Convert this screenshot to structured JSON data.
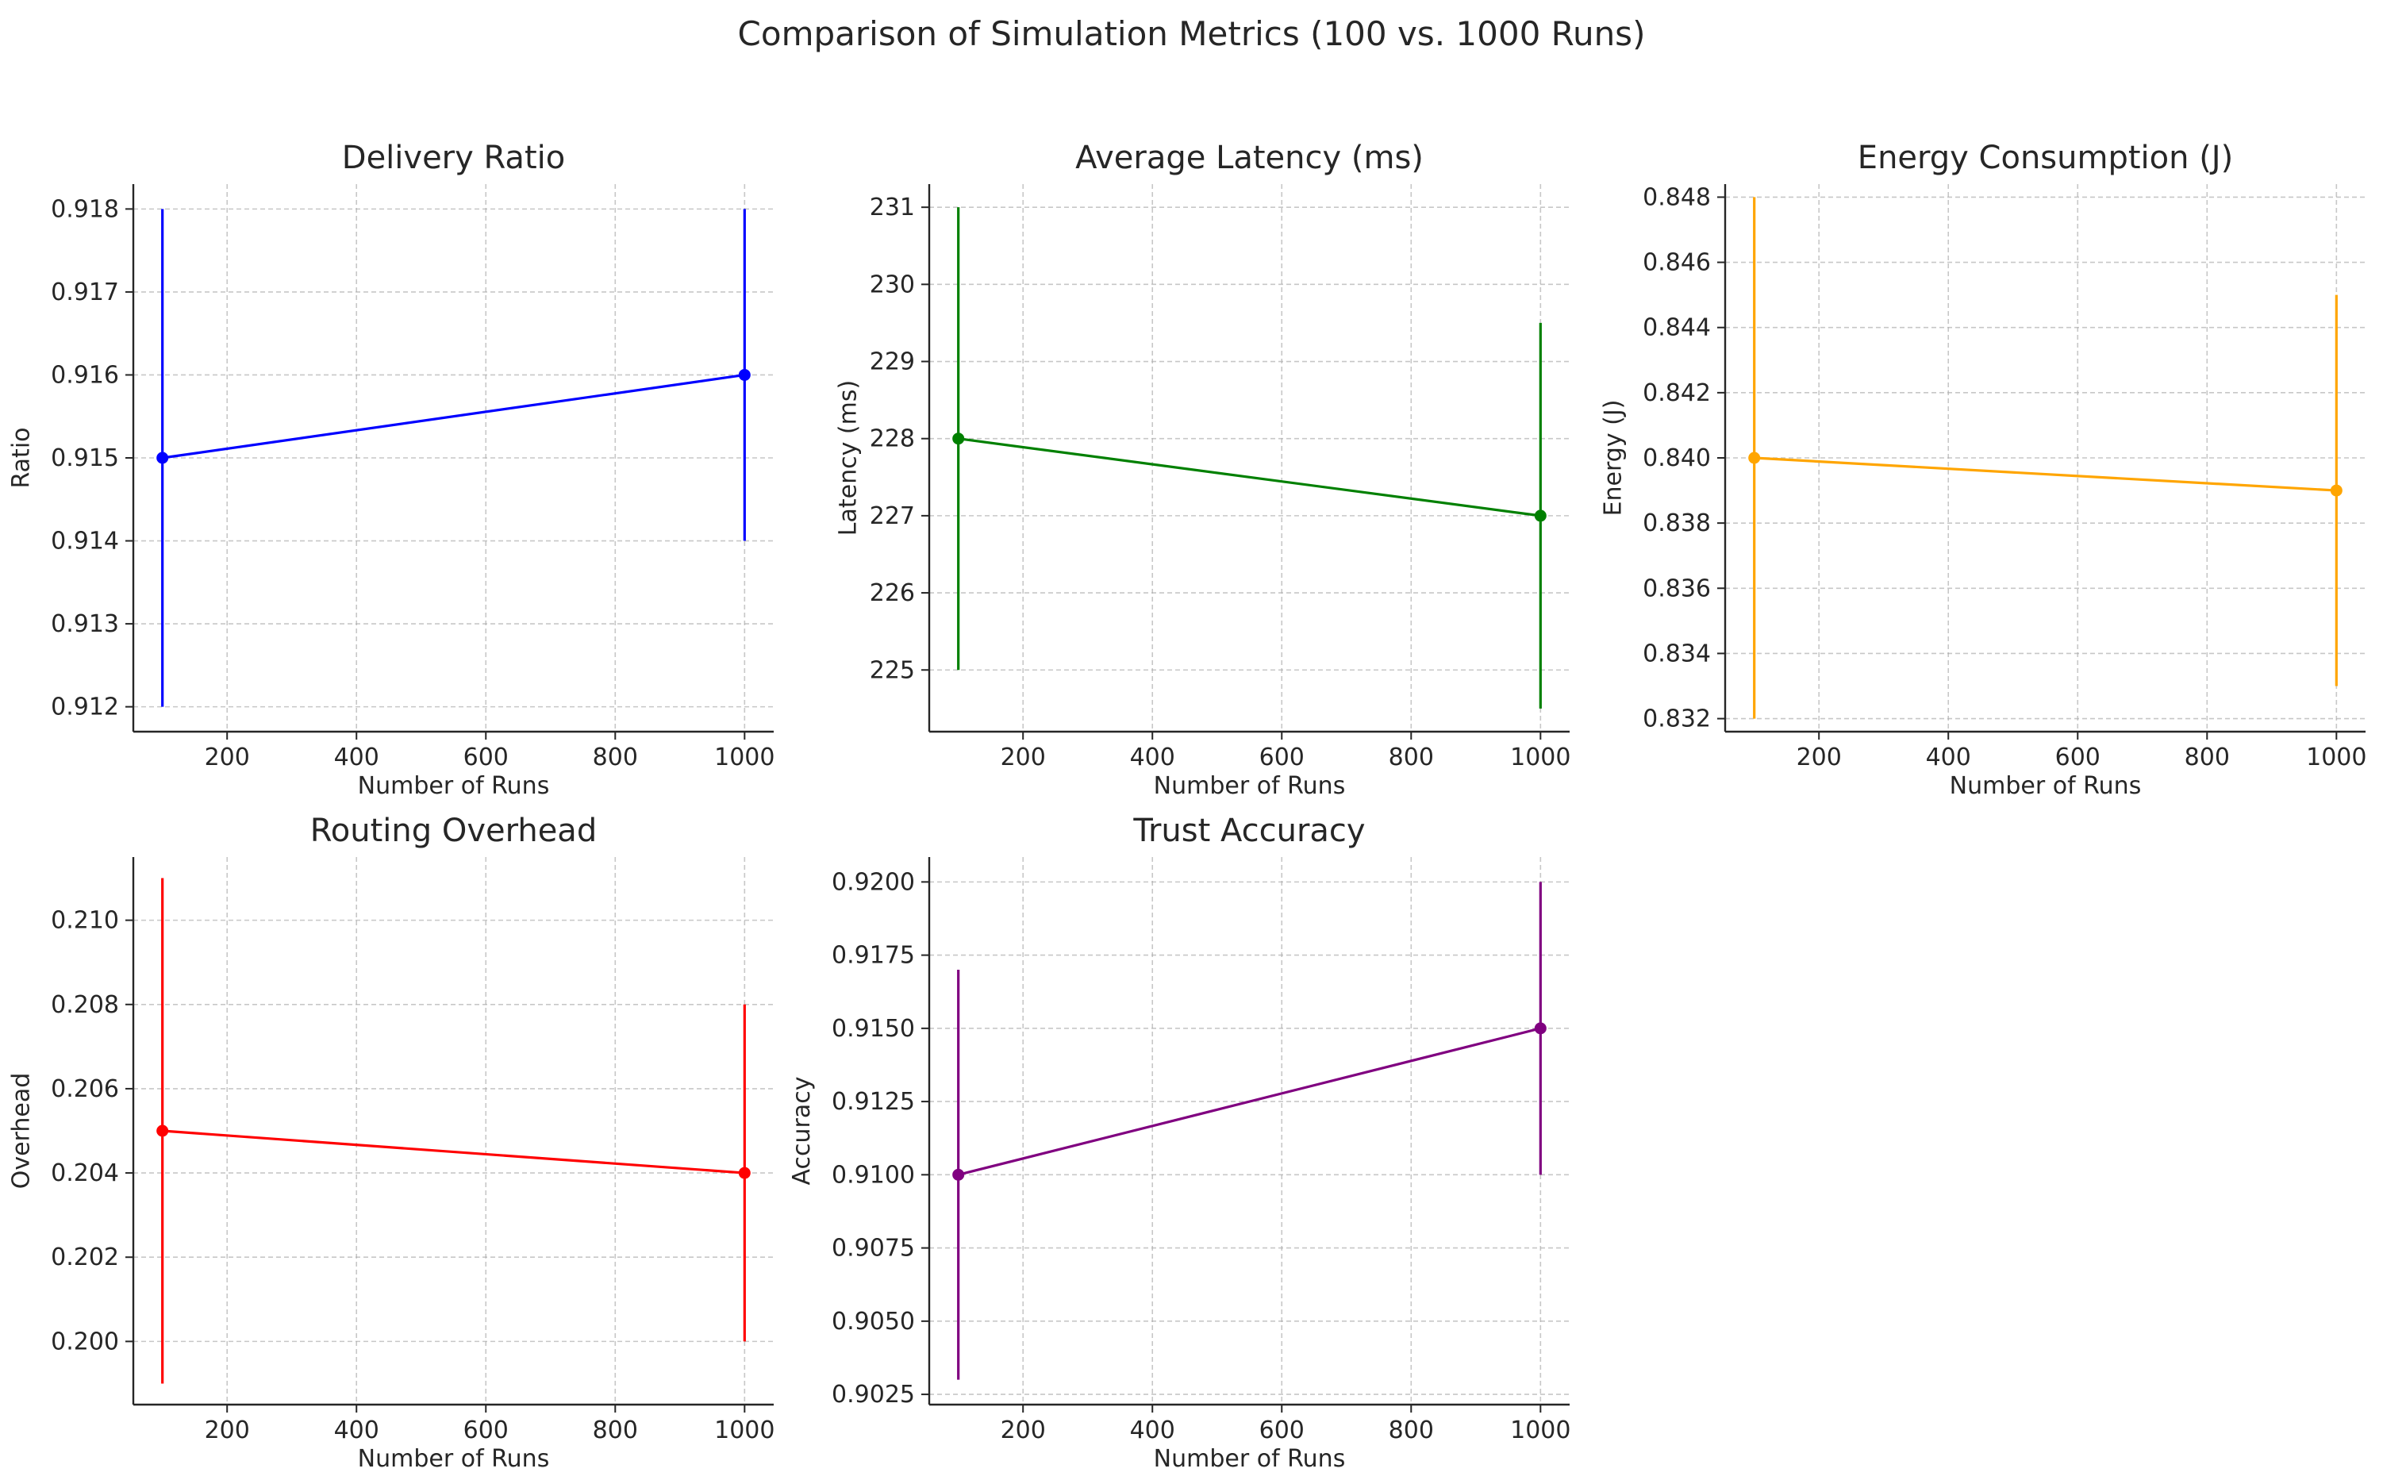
{
  "figure": {
    "suptitle": "Comparison of Simulation Metrics (100 vs. 1000 Runs)"
  },
  "chart_data": [
    {
      "type": "line",
      "title": "Delivery Ratio",
      "xlabel": "Number of Runs",
      "ylabel": "Ratio",
      "color": "#0000ff",
      "x": [
        100,
        1000
      ],
      "series": [
        {
          "values": [
            0.915,
            0.916
          ],
          "error": [
            0.003,
            0.002
          ]
        }
      ],
      "xlim": [
        55,
        1045
      ],
      "ylim": [
        0.9117,
        0.9183
      ],
      "xticks": [
        200,
        400,
        600,
        800,
        1000
      ],
      "xtick_labels": [
        "200",
        "400",
        "600",
        "800",
        "1000"
      ],
      "yticks": [
        0.912,
        0.913,
        0.914,
        0.915,
        0.916,
        0.917,
        0.918
      ],
      "ytick_labels": [
        "0.912",
        "0.913",
        "0.914",
        "0.915",
        "0.916",
        "0.917",
        "0.918"
      ],
      "grid": true
    },
    {
      "type": "line",
      "title": "Average Latency (ms)",
      "xlabel": "Number of Runs",
      "ylabel": "Latency (ms)",
      "color": "#008000",
      "x": [
        100,
        1000
      ],
      "series": [
        {
          "values": [
            228,
            227
          ],
          "error": [
            3,
            2.5
          ]
        }
      ],
      "xlim": [
        55,
        1045
      ],
      "ylim": [
        224.2,
        231.3
      ],
      "xticks": [
        200,
        400,
        600,
        800,
        1000
      ],
      "xtick_labels": [
        "200",
        "400",
        "600",
        "800",
        "1000"
      ],
      "yticks": [
        225,
        226,
        227,
        228,
        229,
        230,
        231
      ],
      "ytick_labels": [
        "225",
        "226",
        "227",
        "228",
        "229",
        "230",
        "231"
      ],
      "grid": true
    },
    {
      "type": "line",
      "title": "Energy Consumption (J)",
      "xlabel": "Number of Runs",
      "ylabel": "Energy (J)",
      "color": "#ffa500",
      "x": [
        100,
        1000
      ],
      "series": [
        {
          "values": [
            0.84,
            0.839
          ],
          "error": [
            0.008,
            0.006
          ]
        }
      ],
      "xlim": [
        55,
        1045
      ],
      "ylim": [
        0.8316,
        0.8484
      ],
      "xticks": [
        200,
        400,
        600,
        800,
        1000
      ],
      "xtick_labels": [
        "200",
        "400",
        "600",
        "800",
        "1000"
      ],
      "yticks": [
        0.832,
        0.834,
        0.836,
        0.838,
        0.84,
        0.842,
        0.844,
        0.846,
        0.848
      ],
      "ytick_labels": [
        "0.832",
        "0.834",
        "0.836",
        "0.838",
        "0.840",
        "0.842",
        "0.844",
        "0.846",
        "0.848"
      ],
      "grid": true
    },
    {
      "type": "line",
      "title": "Routing Overhead",
      "xlabel": "Number of Runs",
      "ylabel": "Overhead",
      "color": "#ff0000",
      "x": [
        100,
        1000
      ],
      "series": [
        {
          "values": [
            0.205,
            0.204
          ],
          "error": [
            0.006,
            0.004
          ]
        }
      ],
      "xlim": [
        55,
        1045
      ],
      "ylim": [
        0.1985,
        0.2115
      ],
      "xticks": [
        200,
        400,
        600,
        800,
        1000
      ],
      "xtick_labels": [
        "200",
        "400",
        "600",
        "800",
        "1000"
      ],
      "yticks": [
        0.2,
        0.202,
        0.204,
        0.206,
        0.208,
        0.21
      ],
      "ytick_labels": [
        "0.200",
        "0.202",
        "0.204",
        "0.206",
        "0.208",
        "0.210"
      ],
      "grid": true
    },
    {
      "type": "line",
      "title": "Trust Accuracy",
      "xlabel": "Number of Runs",
      "ylabel": "Accuracy",
      "color": "#800080",
      "x": [
        100,
        1000
      ],
      "series": [
        {
          "values": [
            0.91,
            0.915
          ],
          "error": [
            0.007,
            0.005
          ]
        }
      ],
      "xlim": [
        55,
        1045
      ],
      "ylim": [
        0.90215,
        0.92085
      ],
      "xticks": [
        200,
        400,
        600,
        800,
        1000
      ],
      "xtick_labels": [
        "200",
        "400",
        "600",
        "800",
        "1000"
      ],
      "yticks": [
        0.9025,
        0.905,
        0.9075,
        0.91,
        0.9125,
        0.915,
        0.9175,
        0.92
      ],
      "ytick_labels": [
        "0.9025",
        "0.9050",
        "0.9075",
        "0.9100",
        "0.9125",
        "0.9150",
        "0.9175",
        "0.9200"
      ],
      "grid": true
    }
  ]
}
